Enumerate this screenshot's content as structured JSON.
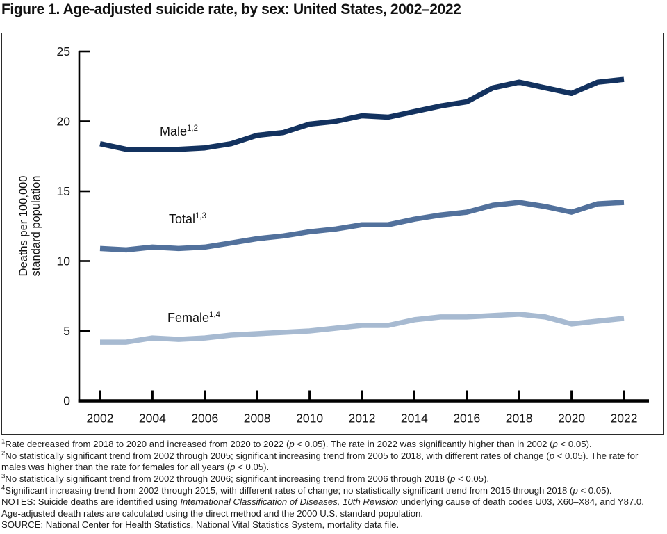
{
  "title": "Figure 1. Age-adjusted suicide rate, by sex: United States, 2002–2022",
  "chart_data": {
    "type": "line",
    "x": [
      2002,
      2003,
      2004,
      2005,
      2006,
      2007,
      2008,
      2009,
      2010,
      2011,
      2012,
      2013,
      2014,
      2015,
      2016,
      2017,
      2018,
      2019,
      2020,
      2021,
      2022
    ],
    "series": [
      {
        "name": "Male",
        "sup": "1,2",
        "color": "#13325f",
        "values": [
          18.4,
          18.0,
          18.0,
          18.0,
          18.1,
          18.4,
          19.0,
          19.2,
          19.8,
          20.0,
          20.4,
          20.3,
          20.7,
          21.1,
          21.4,
          22.4,
          22.8,
          22.4,
          22.0,
          22.8,
          23.0
        ]
      },
      {
        "name": "Total",
        "sup": "1,3",
        "color": "#52719c",
        "values": [
          10.9,
          10.8,
          11.0,
          10.9,
          11.0,
          11.3,
          11.6,
          11.8,
          12.1,
          12.3,
          12.6,
          12.6,
          13.0,
          13.3,
          13.5,
          14.0,
          14.2,
          13.9,
          13.5,
          14.1,
          14.2
        ]
      },
      {
        "name": "Female",
        "sup": "1,4",
        "color": "#a7bad1",
        "values": [
          4.2,
          4.2,
          4.5,
          4.4,
          4.5,
          4.7,
          4.8,
          4.9,
          5.0,
          5.2,
          5.4,
          5.4,
          5.8,
          6.0,
          6.0,
          6.1,
          6.2,
          6.0,
          5.5,
          5.7,
          5.9
        ]
      }
    ],
    "ylabel_lines": [
      "Deaths per 100,000",
      "standard population"
    ],
    "ylim": [
      0,
      25
    ],
    "yticks": [
      0,
      5,
      10,
      15,
      20,
      25
    ],
    "xticks": [
      2002,
      2004,
      2006,
      2008,
      2010,
      2012,
      2014,
      2016,
      2018,
      2020,
      2022
    ],
    "grid": "off",
    "legend": "inline-labels",
    "axis_color": "#000000"
  },
  "footnotes": [
    {
      "sup": "1",
      "segs": [
        [
          "n",
          "Rate decreased from 2018 to 2020 and increased from 2020 to 2022 ("
        ],
        [
          "i",
          "p"
        ],
        [
          "n",
          " < 0.05). The rate in 2022 was significantly higher than in 2002 ("
        ],
        [
          "i",
          "p"
        ],
        [
          "n",
          " < 0.05)."
        ]
      ]
    },
    {
      "sup": "2",
      "segs": [
        [
          "n",
          "No statistically significant trend from 2002 through 2005; significant increasing trend from 2005 to 2018, with different rates of change ("
        ],
        [
          "i",
          "p"
        ],
        [
          "n",
          " < 0.05). The rate for males was higher than the rate for females for all years ("
        ],
        [
          "i",
          "p"
        ],
        [
          "n",
          " < 0.05)."
        ]
      ]
    },
    {
      "sup": "3",
      "segs": [
        [
          "n",
          "No statistically significant trend from 2002 through 2006; significant increasing trend from 2006 through 2018 ("
        ],
        [
          "i",
          "p"
        ],
        [
          "n",
          " < 0.05)."
        ]
      ]
    },
    {
      "sup": "4",
      "segs": [
        [
          "n",
          "Significant increasing trend from 2002 through 2015, with different rates of change; no statistically significant trend from 2015 through 2018 ("
        ],
        [
          "i",
          "p"
        ],
        [
          "n",
          " < 0.05)."
        ]
      ]
    },
    {
      "sup": "",
      "segs": [
        [
          "n",
          "NOTES: Suicide deaths are identified using "
        ],
        [
          "i",
          "International Classification of Diseases, 10th Revision"
        ],
        [
          "n",
          " underlying cause of death codes U03, X60–X84, and Y87.0. Age-adjusted death rates are calculated using the direct method and the 2000 U.S. standard population."
        ]
      ]
    },
    {
      "sup": "",
      "segs": [
        [
          "n",
          "SOURCE: National Center for Health Statistics, National Vital Statistics System, mortality data file."
        ]
      ]
    }
  ]
}
